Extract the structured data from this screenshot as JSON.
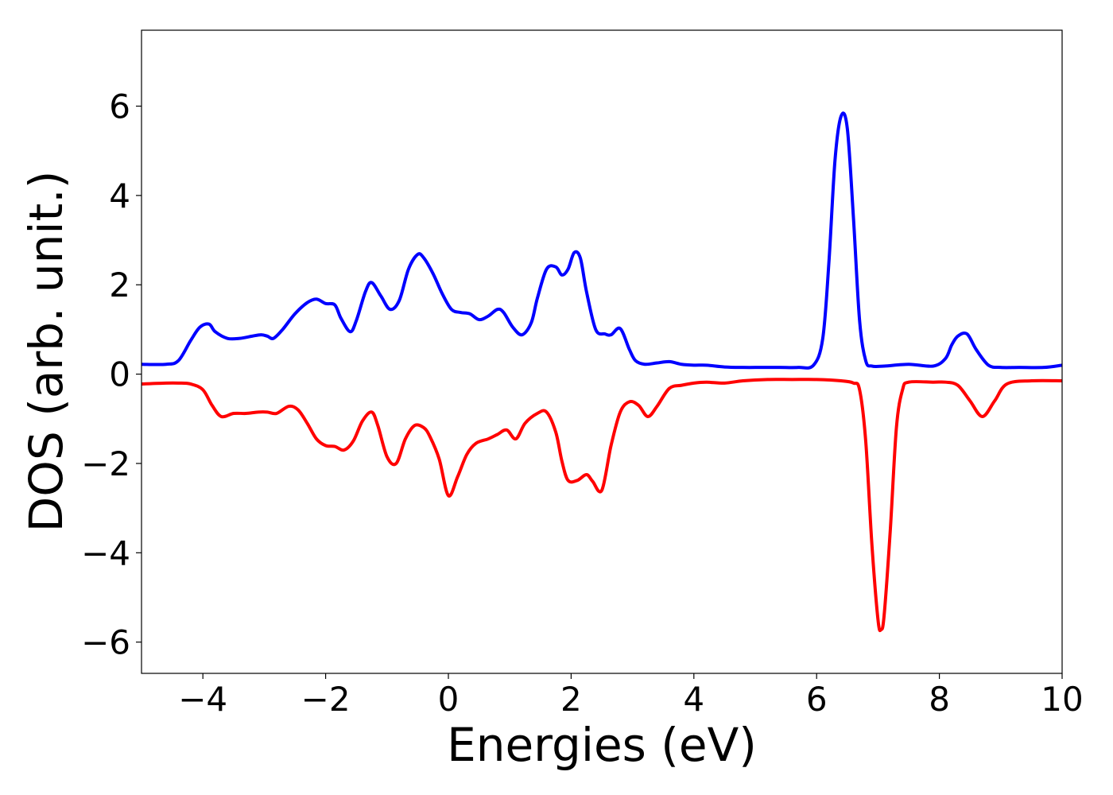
{
  "chart_data": {
    "type": "line",
    "title": "",
    "xlabel": "Energies (eV)",
    "ylabel": "DOS (arb. unit.)",
    "xlim": [
      -5,
      10
    ],
    "ylim": [
      -6.7,
      7.7
    ],
    "x_ticks": [
      -4,
      -2,
      0,
      2,
      4,
      6,
      8,
      10
    ],
    "x_tick_labels": [
      "−4",
      "−2",
      "0",
      "2",
      "4",
      "6",
      "8",
      "10"
    ],
    "y_ticks": [
      -6,
      -4,
      -2,
      0,
      2,
      4,
      6
    ],
    "y_tick_labels": [
      "−6",
      "−4",
      "−2",
      "0",
      "2",
      "4",
      "6"
    ],
    "grid": false,
    "legend": "none",
    "series": [
      {
        "color": "#0000ff",
        "x": [
          -5.0,
          -4.6,
          -4.4,
          -4.2,
          -4.05,
          -3.9,
          -3.8,
          -3.6,
          -3.4,
          -3.2,
          -3.05,
          -2.95,
          -2.85,
          -2.7,
          -2.5,
          -2.3,
          -2.15,
          -2.0,
          -1.85,
          -1.75,
          -1.6,
          -1.5,
          -1.35,
          -1.25,
          -1.1,
          -0.95,
          -0.8,
          -0.65,
          -0.5,
          -0.4,
          -0.25,
          -0.1,
          0.05,
          0.2,
          0.35,
          0.5,
          0.65,
          0.8,
          0.9,
          1.05,
          1.2,
          1.35,
          1.45,
          1.6,
          1.75,
          1.85,
          1.95,
          2.05,
          2.15,
          2.25,
          2.4,
          2.55,
          2.65,
          2.8,
          2.95,
          3.05,
          3.2,
          3.4,
          3.6,
          3.8,
          4.0,
          4.2,
          4.5,
          4.8,
          5.1,
          5.4,
          5.7,
          5.95,
          6.1,
          6.2,
          6.3,
          6.4,
          6.5,
          6.6,
          6.7,
          6.8,
          6.9,
          7.1,
          7.5,
          7.9,
          8.1,
          8.2,
          8.3,
          8.45,
          8.6,
          8.8,
          9.0,
          9.3,
          9.7,
          10.0
        ],
        "values": [
          0.22,
          0.22,
          0.3,
          0.75,
          1.05,
          1.12,
          0.95,
          0.8,
          0.8,
          0.85,
          0.88,
          0.85,
          0.8,
          1.0,
          1.35,
          1.6,
          1.68,
          1.58,
          1.55,
          1.25,
          0.95,
          1.2,
          1.85,
          2.05,
          1.75,
          1.45,
          1.65,
          2.35,
          2.68,
          2.6,
          2.25,
          1.8,
          1.45,
          1.38,
          1.35,
          1.22,
          1.3,
          1.45,
          1.38,
          1.05,
          0.88,
          1.15,
          1.7,
          2.35,
          2.4,
          2.22,
          2.35,
          2.72,
          2.6,
          1.85,
          1.0,
          0.9,
          0.88,
          1.02,
          0.55,
          0.3,
          0.22,
          0.25,
          0.28,
          0.22,
          0.2,
          0.2,
          0.16,
          0.15,
          0.15,
          0.15,
          0.15,
          0.2,
          0.8,
          2.5,
          4.8,
          5.78,
          5.5,
          3.5,
          1.2,
          0.3,
          0.18,
          0.18,
          0.22,
          0.18,
          0.35,
          0.65,
          0.85,
          0.9,
          0.55,
          0.2,
          0.15,
          0.15,
          0.15,
          0.2
        ]
      },
      {
        "color": "#ff0000",
        "x": [
          -5.0,
          -4.6,
          -4.4,
          -4.2,
          -4.0,
          -3.85,
          -3.7,
          -3.5,
          -3.3,
          -3.1,
          -2.95,
          -2.8,
          -2.6,
          -2.45,
          -2.3,
          -2.15,
          -2.0,
          -1.85,
          -1.7,
          -1.55,
          -1.4,
          -1.25,
          -1.15,
          -1.0,
          -0.85,
          -0.7,
          -0.55,
          -0.4,
          -0.3,
          -0.15,
          0.0,
          0.15,
          0.3,
          0.45,
          0.65,
          0.8,
          0.95,
          1.1,
          1.25,
          1.45,
          1.6,
          1.75,
          1.85,
          1.95,
          2.1,
          2.25,
          2.35,
          2.5,
          2.65,
          2.8,
          2.95,
          3.1,
          3.25,
          3.4,
          3.6,
          3.8,
          4.0,
          4.2,
          4.5,
          4.8,
          5.2,
          5.6,
          6.0,
          6.4,
          6.6,
          6.7,
          6.8,
          6.9,
          7.0,
          7.05,
          7.1,
          7.2,
          7.3,
          7.4,
          7.5,
          7.9,
          8.1,
          8.3,
          8.5,
          8.7,
          8.9,
          9.1,
          9.5,
          10.0
        ],
        "values": [
          -0.22,
          -0.2,
          -0.2,
          -0.22,
          -0.35,
          -0.7,
          -0.95,
          -0.88,
          -0.88,
          -0.85,
          -0.85,
          -0.88,
          -0.72,
          -0.8,
          -1.1,
          -1.45,
          -1.6,
          -1.62,
          -1.7,
          -1.5,
          -1.05,
          -0.85,
          -1.15,
          -1.85,
          -2.0,
          -1.45,
          -1.15,
          -1.2,
          -1.4,
          -1.9,
          -2.72,
          -2.3,
          -1.8,
          -1.55,
          -1.45,
          -1.35,
          -1.25,
          -1.45,
          -1.1,
          -0.88,
          -0.85,
          -1.3,
          -1.95,
          -2.38,
          -2.38,
          -2.25,
          -2.4,
          -2.6,
          -1.6,
          -0.85,
          -0.62,
          -0.7,
          -0.95,
          -0.72,
          -0.32,
          -0.25,
          -0.2,
          -0.18,
          -0.2,
          -0.15,
          -0.12,
          -0.12,
          -0.12,
          -0.15,
          -0.2,
          -0.35,
          -1.5,
          -3.8,
          -5.5,
          -5.72,
          -5.4,
          -3.5,
          -1.2,
          -0.35,
          -0.18,
          -0.18,
          -0.18,
          -0.25,
          -0.6,
          -0.95,
          -0.6,
          -0.22,
          -0.15,
          -0.15
        ]
      }
    ]
  }
}
